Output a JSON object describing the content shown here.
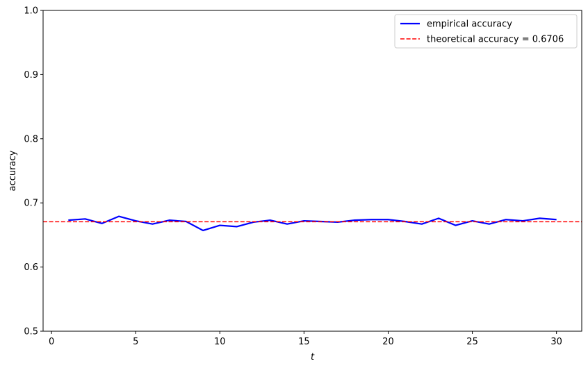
{
  "chart_data": {
    "type": "line",
    "title": "",
    "xlabel": "t",
    "ylabel": "accuracy",
    "xlim": [
      -0.5,
      31.5
    ],
    "ylim": [
      0.5,
      1.0
    ],
    "xticks": [
      0,
      5,
      10,
      15,
      20,
      25,
      30
    ],
    "yticks": [
      0.5,
      0.6,
      0.7,
      0.8,
      0.9,
      1.0
    ],
    "xtick_labels": [
      "0",
      "5",
      "10",
      "15",
      "20",
      "25",
      "30"
    ],
    "ytick_labels": [
      "0.5",
      "0.6",
      "0.7",
      "0.8",
      "0.9",
      "1.0"
    ],
    "grid": false,
    "legend_position": "top-right",
    "series": [
      {
        "name": "empirical accuracy",
        "color": "#0000ff",
        "style": "solid",
        "x": [
          1,
          2,
          3,
          4,
          5,
          6,
          7,
          8,
          9,
          10,
          11,
          12,
          13,
          14,
          15,
          16,
          17,
          18,
          19,
          20,
          21,
          22,
          23,
          24,
          25,
          26,
          27,
          28,
          29,
          30
        ],
        "y": [
          0.673,
          0.675,
          0.668,
          0.679,
          0.672,
          0.667,
          0.673,
          0.671,
          0.657,
          0.665,
          0.663,
          0.67,
          0.673,
          0.667,
          0.672,
          0.671,
          0.67,
          0.673,
          0.674,
          0.674,
          0.671,
          0.667,
          0.676,
          0.665,
          0.672,
          0.667,
          0.674,
          0.672,
          0.676,
          0.674
        ]
      },
      {
        "name": "theoretical accuracy = 0.6706",
        "color": "#ff0000",
        "style": "dashed",
        "hline": 0.6706
      }
    ]
  }
}
